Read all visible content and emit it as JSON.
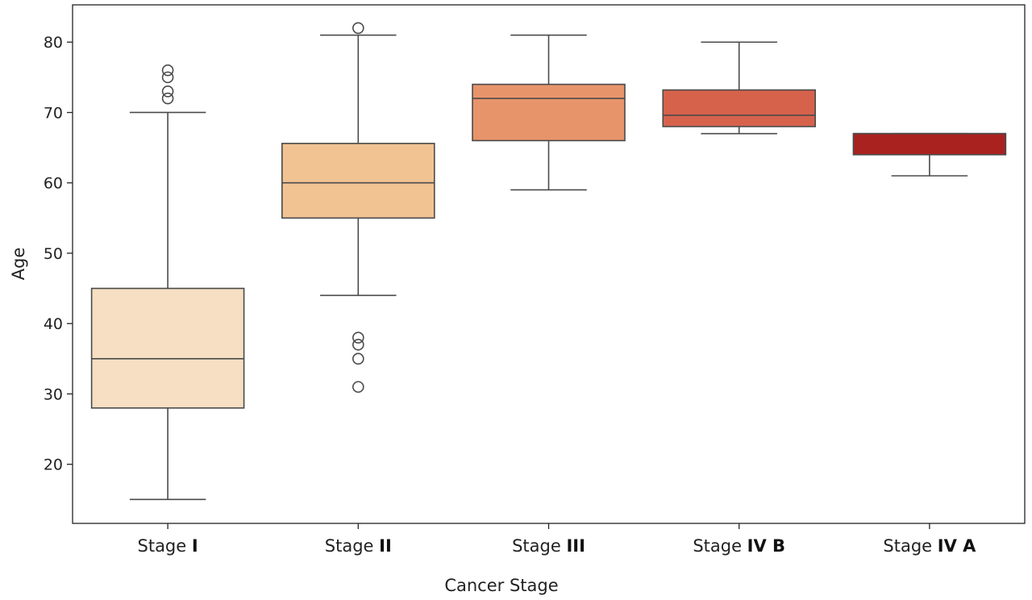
{
  "chart_data": {
    "type": "box",
    "xlabel": "Cancer Stage",
    "ylabel": "Age",
    "ylim": [
      11.6,
      85.3
    ],
    "yticks": [
      20,
      30,
      40,
      50,
      60,
      70,
      80
    ],
    "grid": false,
    "line_color": "#4a4a4a",
    "categories": [
      {
        "prefix": "Stage",
        "roman": "I",
        "label": "Stage I"
      },
      {
        "prefix": "Stage",
        "roman": "II",
        "label": "Stage II"
      },
      {
        "prefix": "Stage",
        "roman": "III",
        "label": "Stage III"
      },
      {
        "prefix": "Stage",
        "roman": "IV B",
        "label": "Stage IV B"
      },
      {
        "prefix": "Stage",
        "roman": "IV A",
        "label": "Stage IV A"
      }
    ],
    "boxes": [
      {
        "category": "Stage I",
        "whisker_low": 15,
        "q1": 28,
        "median": 35,
        "q3": 45,
        "whisker_high": 70,
        "outliers": [
          72,
          73,
          75,
          76
        ],
        "color": "#f6dfc3"
      },
      {
        "category": "Stage II",
        "whisker_low": 44,
        "q1": 55,
        "median": 60,
        "q3": 65.6,
        "whisker_high": 81,
        "outliers": [
          31,
          35,
          37,
          38,
          82
        ],
        "color": "#f1c393"
      },
      {
        "category": "Stage III",
        "whisker_low": 59,
        "q1": 66,
        "median": 72,
        "q3": 74,
        "whisker_high": 81,
        "outliers": [],
        "color": "#e8946b"
      },
      {
        "category": "Stage IV B",
        "whisker_low": 67,
        "q1": 68,
        "median": 69.6,
        "q3": 73.2,
        "whisker_high": 80,
        "outliers": [],
        "color": "#d6624c"
      },
      {
        "category": "Stage IV A",
        "whisker_low": 61,
        "q1": 64,
        "median": 67,
        "q3": 67,
        "whisker_high": 67,
        "outliers": [],
        "color": "#a9221f"
      }
    ]
  }
}
